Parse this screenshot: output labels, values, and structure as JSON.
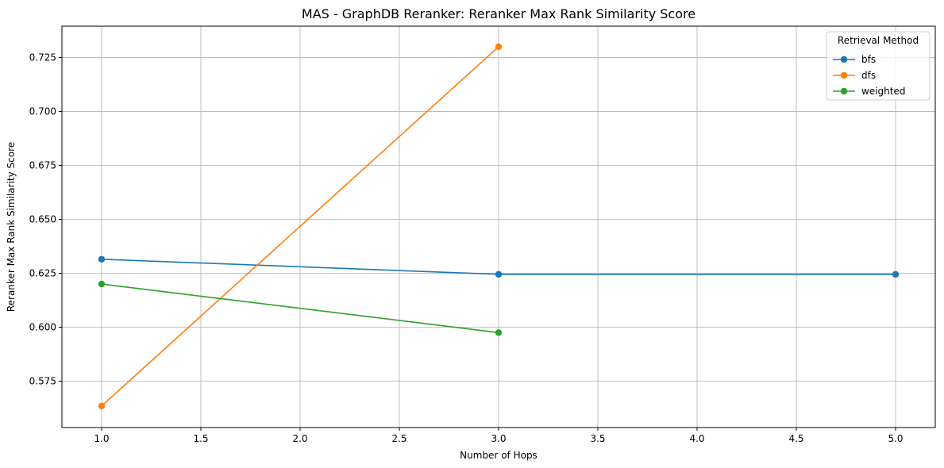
{
  "chart_data": {
    "type": "line",
    "title": "MAS - GraphDB Reranker: Reranker Max Rank Similarity Score",
    "xlabel": "Number of Hops",
    "ylabel": "Reranker Max Rank Similarity Score",
    "xlim": [
      0.8,
      5.2
    ],
    "ylim": [
      0.5535,
      0.7395
    ],
    "xticks": [
      "1.0",
      "1.5",
      "2.0",
      "2.5",
      "3.0",
      "3.5",
      "4.0",
      "4.5",
      "5.0"
    ],
    "yticks": [
      "0.575",
      "0.600",
      "0.625",
      "0.650",
      "0.675",
      "0.700",
      "0.725"
    ],
    "grid": true,
    "legend": {
      "title": "Retrieval Method",
      "placement": "top-right"
    },
    "series": [
      {
        "name": "bfs",
        "color": "#1f77b4",
        "x": [
          1,
          3,
          5
        ],
        "y": [
          0.6315,
          0.6245,
          0.6245
        ]
      },
      {
        "name": "dfs",
        "color": "#ff7f0e",
        "x": [
          1,
          3
        ],
        "y": [
          0.5635,
          0.73
        ]
      },
      {
        "name": "weighted",
        "color": "#2ca02c",
        "x": [
          1,
          3
        ],
        "y": [
          0.62,
          0.5975
        ]
      }
    ]
  }
}
